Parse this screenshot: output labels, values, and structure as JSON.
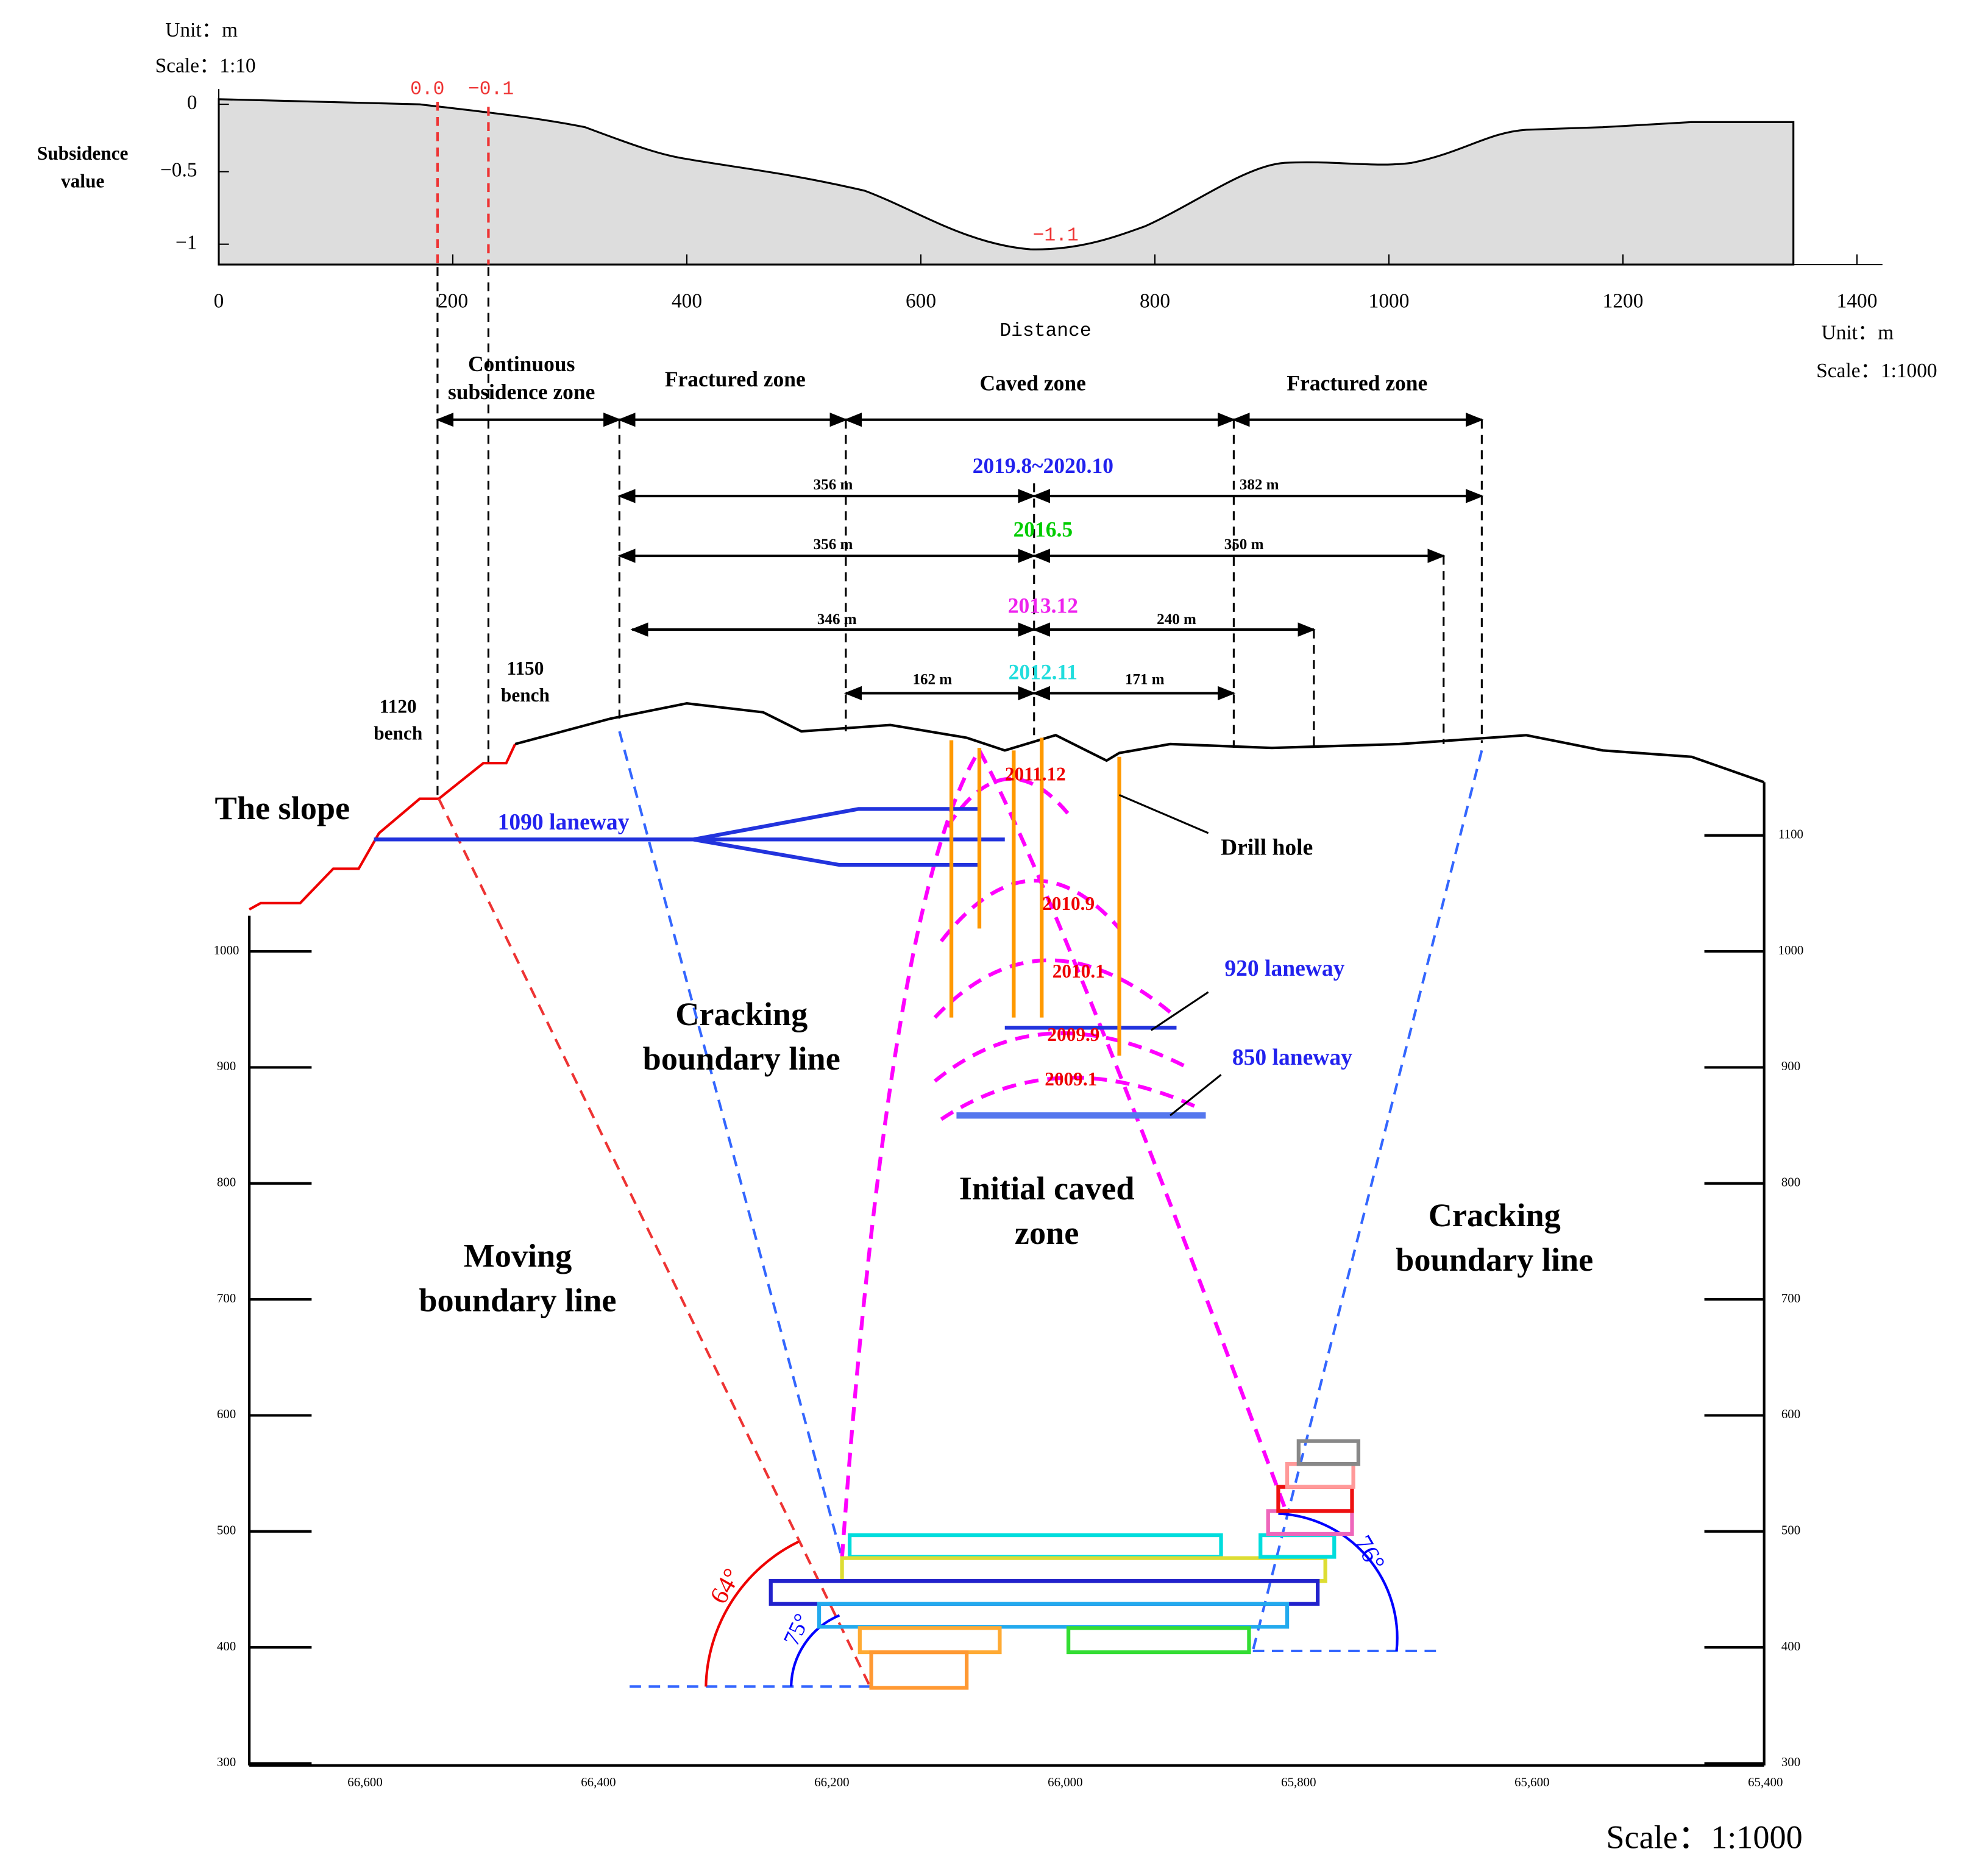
{
  "profile": {
    "unit": "Unit：m",
    "scale": "Scale：1:10",
    "ylabel": [
      "Subsidence",
      "value"
    ],
    "yticks": [
      "0",
      "−0.5",
      "−1"
    ],
    "xticks": [
      "0",
      "200",
      "400",
      "600",
      "800",
      "1000",
      "1200",
      "1400"
    ],
    "xlabel": "Distance",
    "annotations": [
      "0.0",
      "−0.1",
      "−1.1"
    ]
  },
  "section_unit": "Unit：m",
  "section_scale": "Scale：1:1000",
  "zones": [
    [
      "Continuous",
      "subsidence zone"
    ],
    "Fractured zone",
    "Caved zone",
    "Fractured zone"
  ],
  "periods": [
    {
      "date": "2019.8~2020.10",
      "left": "356 m",
      "right": "382 m"
    },
    {
      "date": "2016.5",
      "left": "356 m",
      "right": "350 m"
    },
    {
      "date": "2013.12",
      "left": "346 m",
      "right": "240 m"
    },
    {
      "date": "2012.11",
      "left": "162 m",
      "right": "171 m"
    }
  ],
  "labels": {
    "bench1120": [
      "1120",
      "bench"
    ],
    "bench1150": [
      "1150",
      "bench"
    ],
    "slope": "The slope",
    "laneway1090": "1090 laneway",
    "drill_hole": "Drill hole",
    "laneway920": "920 laneway",
    "laneway850": "850 laneway",
    "cracking_left": [
      "Cracking",
      "boundary line"
    ],
    "cracking_right": [
      "Cracking",
      "boundary line"
    ],
    "moving": [
      "Moving",
      "boundary line"
    ],
    "initial_caved": [
      "Initial caved",
      "zone"
    ],
    "angles": [
      "64°",
      "75°",
      "76°"
    ]
  },
  "cave_dates": [
    "2011.12",
    "2010.9",
    "2010.1",
    "2009.9",
    "2009.1"
  ],
  "section_yticks_left": [
    "1000",
    "900",
    "800",
    "700",
    "600",
    "500",
    "400",
    "300"
  ],
  "section_yticks_right": [
    "1100",
    "1000",
    "900",
    "800",
    "700",
    "600",
    "500",
    "400",
    "300"
  ],
  "section_xticks": [
    "66,600",
    "66,400",
    "66,200",
    "66,000",
    "65,800",
    "65,600",
    "65,400"
  ],
  "footer_scale": "Scale：1:1000"
}
